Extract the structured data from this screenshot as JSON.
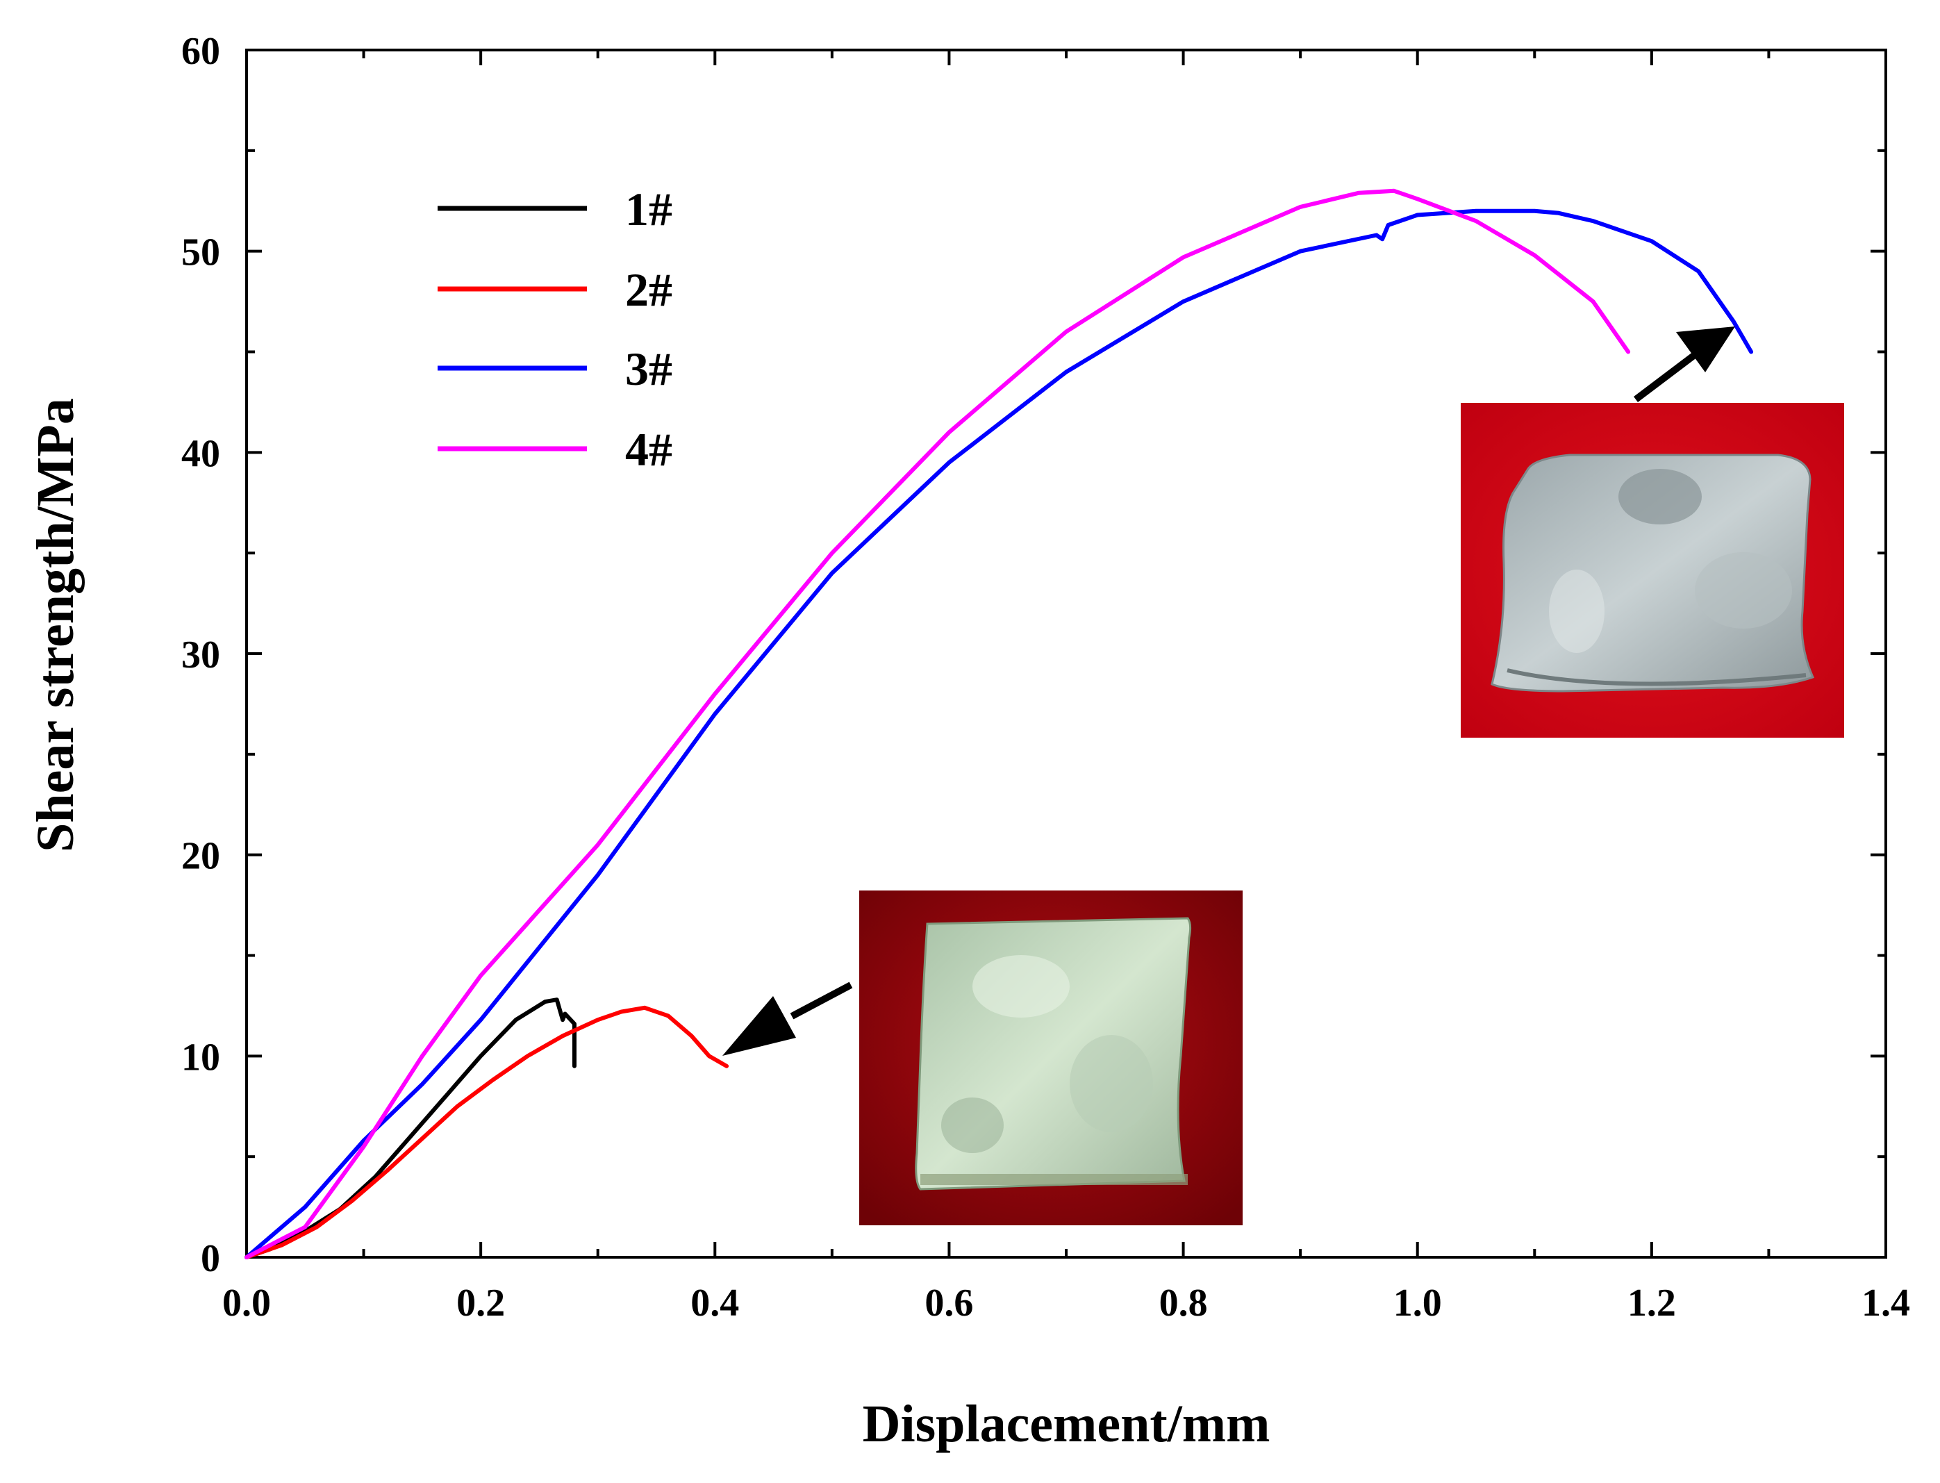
{
  "chart_data": {
    "type": "line",
    "title": "",
    "xlabel": "Displacement/mm",
    "ylabel": "Shear strength/MPa",
    "xlim": [
      0.0,
      1.4
    ],
    "ylim": [
      0,
      60
    ],
    "x_ticks": [
      "0.0",
      "0.2",
      "0.4",
      "0.6",
      "0.8",
      "1.0",
      "1.2",
      "1.4"
    ],
    "y_ticks": [
      "0",
      "10",
      "20",
      "30",
      "40",
      "50",
      "60"
    ],
    "x_tick_values": [
      0.0,
      0.2,
      0.4,
      0.6,
      0.8,
      1.0,
      1.2,
      1.4
    ],
    "y_tick_values": [
      0,
      10,
      20,
      30,
      40,
      50,
      60
    ],
    "grid": false,
    "legend_position": "upper-left",
    "series": [
      {
        "name": "1#",
        "color": "#000000",
        "points": [
          [
            0.0,
            0
          ],
          [
            0.02,
            0.4
          ],
          [
            0.05,
            1.3
          ],
          [
            0.08,
            2.4
          ],
          [
            0.11,
            4.0
          ],
          [
            0.14,
            6.0
          ],
          [
            0.17,
            8.0
          ],
          [
            0.2,
            10.0
          ],
          [
            0.23,
            11.8
          ],
          [
            0.255,
            12.7
          ],
          [
            0.265,
            12.8
          ],
          [
            0.27,
            11.8
          ],
          [
            0.272,
            12.1
          ],
          [
            0.28,
            11.6
          ],
          [
            0.28,
            9.5
          ]
        ]
      },
      {
        "name": "2#",
        "color": "#ff0000",
        "points": [
          [
            0.0,
            0
          ],
          [
            0.03,
            0.6
          ],
          [
            0.06,
            1.5
          ],
          [
            0.09,
            2.8
          ],
          [
            0.12,
            4.3
          ],
          [
            0.15,
            5.9
          ],
          [
            0.18,
            7.5
          ],
          [
            0.21,
            8.8
          ],
          [
            0.24,
            10.0
          ],
          [
            0.27,
            11.0
          ],
          [
            0.3,
            11.8
          ],
          [
            0.32,
            12.2
          ],
          [
            0.34,
            12.4
          ],
          [
            0.36,
            12.0
          ],
          [
            0.38,
            11.0
          ],
          [
            0.395,
            10.0
          ],
          [
            0.41,
            9.5
          ]
        ]
      },
      {
        "name": "3#",
        "color": "#0000ff",
        "points": [
          [
            0.0,
            0
          ],
          [
            0.05,
            2.5
          ],
          [
            0.1,
            5.8
          ],
          [
            0.15,
            8.6
          ],
          [
            0.2,
            11.8
          ],
          [
            0.3,
            19.0
          ],
          [
            0.4,
            27.0
          ],
          [
            0.5,
            34.0
          ],
          [
            0.6,
            39.5
          ],
          [
            0.7,
            44.0
          ],
          [
            0.8,
            47.5
          ],
          [
            0.9,
            50.0
          ],
          [
            0.965,
            50.8
          ],
          [
            0.97,
            50.6
          ],
          [
            0.975,
            51.3
          ],
          [
            1.0,
            51.8
          ],
          [
            1.05,
            52.0
          ],
          [
            1.1,
            52.0
          ],
          [
            1.12,
            51.9
          ],
          [
            1.15,
            51.5
          ],
          [
            1.2,
            50.5
          ],
          [
            1.24,
            49.0
          ],
          [
            1.27,
            46.5
          ],
          [
            1.285,
            45.0
          ]
        ]
      },
      {
        "name": "4#",
        "color": "#ff00ff",
        "points": [
          [
            0.0,
            0
          ],
          [
            0.05,
            1.5
          ],
          [
            0.1,
            5.5
          ],
          [
            0.15,
            10.0
          ],
          [
            0.2,
            14.0
          ],
          [
            0.3,
            20.5
          ],
          [
            0.4,
            28.0
          ],
          [
            0.5,
            35.0
          ],
          [
            0.6,
            41.0
          ],
          [
            0.7,
            46.0
          ],
          [
            0.8,
            49.7
          ],
          [
            0.9,
            52.2
          ],
          [
            0.95,
            52.9
          ],
          [
            0.98,
            53.0
          ],
          [
            1.0,
            52.6
          ],
          [
            1.05,
            51.5
          ],
          [
            1.1,
            49.8
          ],
          [
            1.15,
            47.5
          ],
          [
            1.18,
            45.0
          ]
        ]
      }
    ],
    "insets": [
      {
        "name": "specimen-photo-3",
        "points_to_series": "3#"
      },
      {
        "name": "specimen-photo-2",
        "points_to_series": "2#"
      }
    ]
  }
}
